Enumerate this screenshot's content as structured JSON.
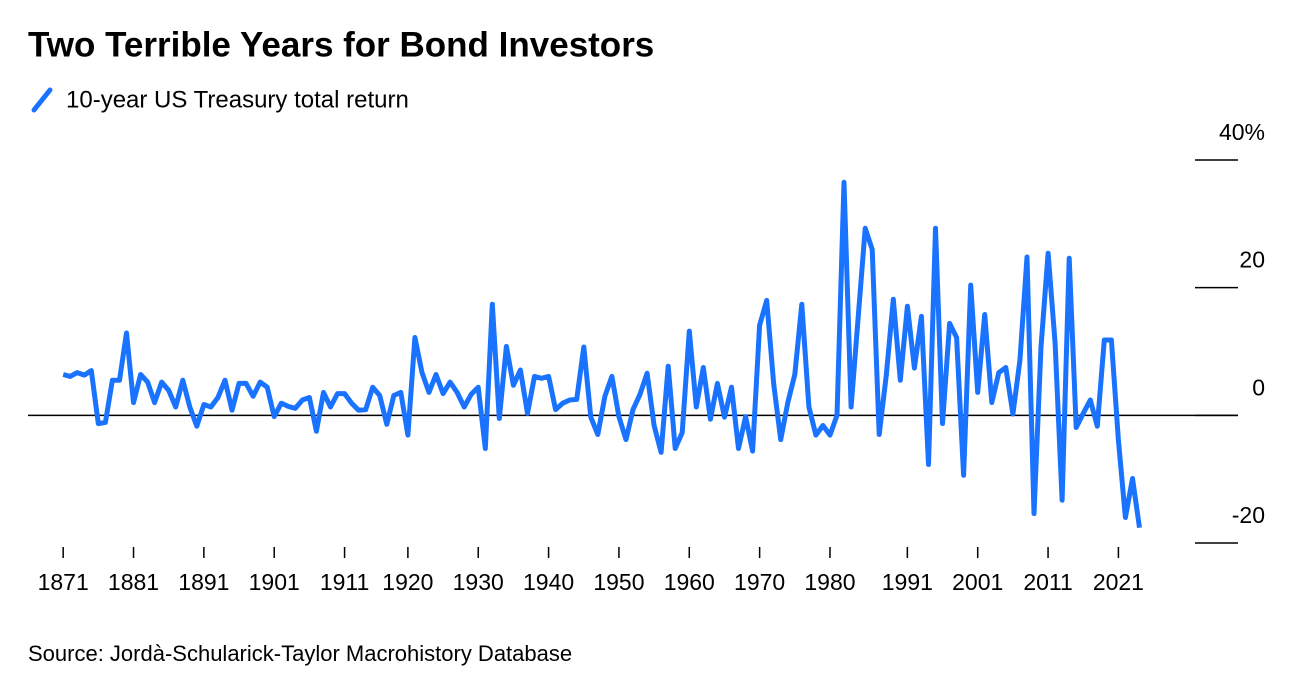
{
  "chart_data": {
    "type": "line",
    "title": "Two Terrible Years for Bond Investors",
    "source": "Source: Jordà-Schularick-Taylor Macrohistory Database",
    "x": [
      1871,
      1872,
      1873,
      1874,
      1875,
      1876,
      1877,
      1878,
      1879,
      1880,
      1881,
      1882,
      1883,
      1884,
      1885,
      1886,
      1887,
      1888,
      1889,
      1890,
      1891,
      1892,
      1893,
      1894,
      1895,
      1896,
      1897,
      1898,
      1899,
      1900,
      1901,
      1902,
      1903,
      1904,
      1905,
      1906,
      1907,
      1908,
      1909,
      1910,
      1911,
      1912,
      1913,
      1914,
      1915,
      1916,
      1917,
      1918,
      1919,
      1920,
      1921,
      1922,
      1923,
      1924,
      1925,
      1926,
      1927,
      1928,
      1929,
      1930,
      1931,
      1932,
      1933,
      1934,
      1935,
      1936,
      1937,
      1938,
      1939,
      1940,
      1941,
      1942,
      1943,
      1944,
      1945,
      1946,
      1947,
      1948,
      1949,
      1950,
      1951,
      1952,
      1953,
      1954,
      1955,
      1956,
      1957,
      1958,
      1959,
      1960,
      1961,
      1962,
      1963,
      1964,
      1965,
      1966,
      1967,
      1968,
      1969,
      1970,
      1971,
      1972,
      1973,
      1974,
      1975,
      1976,
      1977,
      1978,
      1979,
      1980,
      1981,
      1982,
      1983,
      1984,
      1985,
      1986,
      1987,
      1988,
      1989,
      1990,
      1991,
      1992,
      1993,
      1994,
      1995,
      1996,
      1997,
      1998,
      1999,
      2000,
      2001,
      2002,
      2003,
      2004,
      2005,
      2006,
      2007,
      2008,
      2009,
      2010,
      2011,
      2012,
      2013,
      2014,
      2015,
      2016,
      2017,
      2018,
      2019,
      2020,
      2021,
      2022,
      2023,
      2024
    ],
    "series": [
      {
        "name": "10-year US Treasury total return",
        "color": "#1a73ff",
        "values": [
          6.4,
          6.1,
          6.7,
          6.3,
          7.0,
          -1.3,
          -1.1,
          5.5,
          5.5,
          12.9,
          2.0,
          6.4,
          5.2,
          2.0,
          5.2,
          3.9,
          1.3,
          5.5,
          1.3,
          -1.7,
          1.7,
          1.3,
          2.8,
          5.5,
          0.8,
          5.0,
          5.0,
          3.0,
          5.2,
          4.4,
          -0.2,
          1.9,
          1.4,
          1.1,
          2.4,
          2.8,
          -2.5,
          3.6,
          1.3,
          3.4,
          3.4,
          1.9,
          0.8,
          0.9,
          4.4,
          3.1,
          -1.4,
          3.1,
          3.6,
          -3.1,
          12.2,
          6.7,
          3.6,
          6.4,
          3.4,
          5.2,
          3.6,
          1.3,
          3.3,
          4.4,
          -5.2,
          17.4,
          -0.5,
          10.8,
          4.7,
          7.1,
          0.3,
          6.1,
          5.8,
          6.1,
          0.9,
          1.9,
          2.4,
          2.5,
          10.7,
          -0.3,
          -3.0,
          3.0,
          6.1,
          -0.2,
          -3.8,
          0.9,
          3.3,
          6.6,
          -1.6,
          -5.8,
          7.7,
          -5.2,
          -2.7,
          13.2,
          1.3,
          7.5,
          -0.6,
          5.0,
          -0.3,
          4.4,
          -5.2,
          -0.2,
          -5.6,
          14.1,
          18.0,
          4.9,
          -3.8,
          2.0,
          6.4,
          17.4,
          1.3,
          -3.1,
          -1.6,
          -3.1,
          0,
          36.5,
          1.3,
          15.2,
          29.3,
          26.0,
          -3.0,
          6.3,
          18.2,
          5.5,
          17.1,
          7.4,
          15.5,
          -7.7,
          29.3,
          -1.3,
          14.4,
          12.2,
          -9.4,
          20.4,
          3.6,
          15.8,
          2.0,
          6.7,
          7.5,
          0.2,
          8.6,
          24.8,
          -15.4,
          10.7,
          25.4,
          11.3,
          -13.3,
          24.6,
          -1.9,
          0.3,
          2.4,
          -1.7,
          11.8,
          11.8,
          -3.9,
          -16.0,
          -9.9,
          -17.6
        ]
      }
    ],
    "xlim": [
      1866,
      2038
    ],
    "xticks": [
      1871,
      1881,
      1891,
      1901,
      1911,
      1920,
      1930,
      1940,
      1950,
      1960,
      1970,
      1980,
      1991,
      2001,
      2011,
      2021
    ],
    "ylim": [
      -20,
      40
    ],
    "yticks": [
      -20,
      0,
      20,
      {
        "value": 40,
        "label": "40%"
      }
    ]
  }
}
